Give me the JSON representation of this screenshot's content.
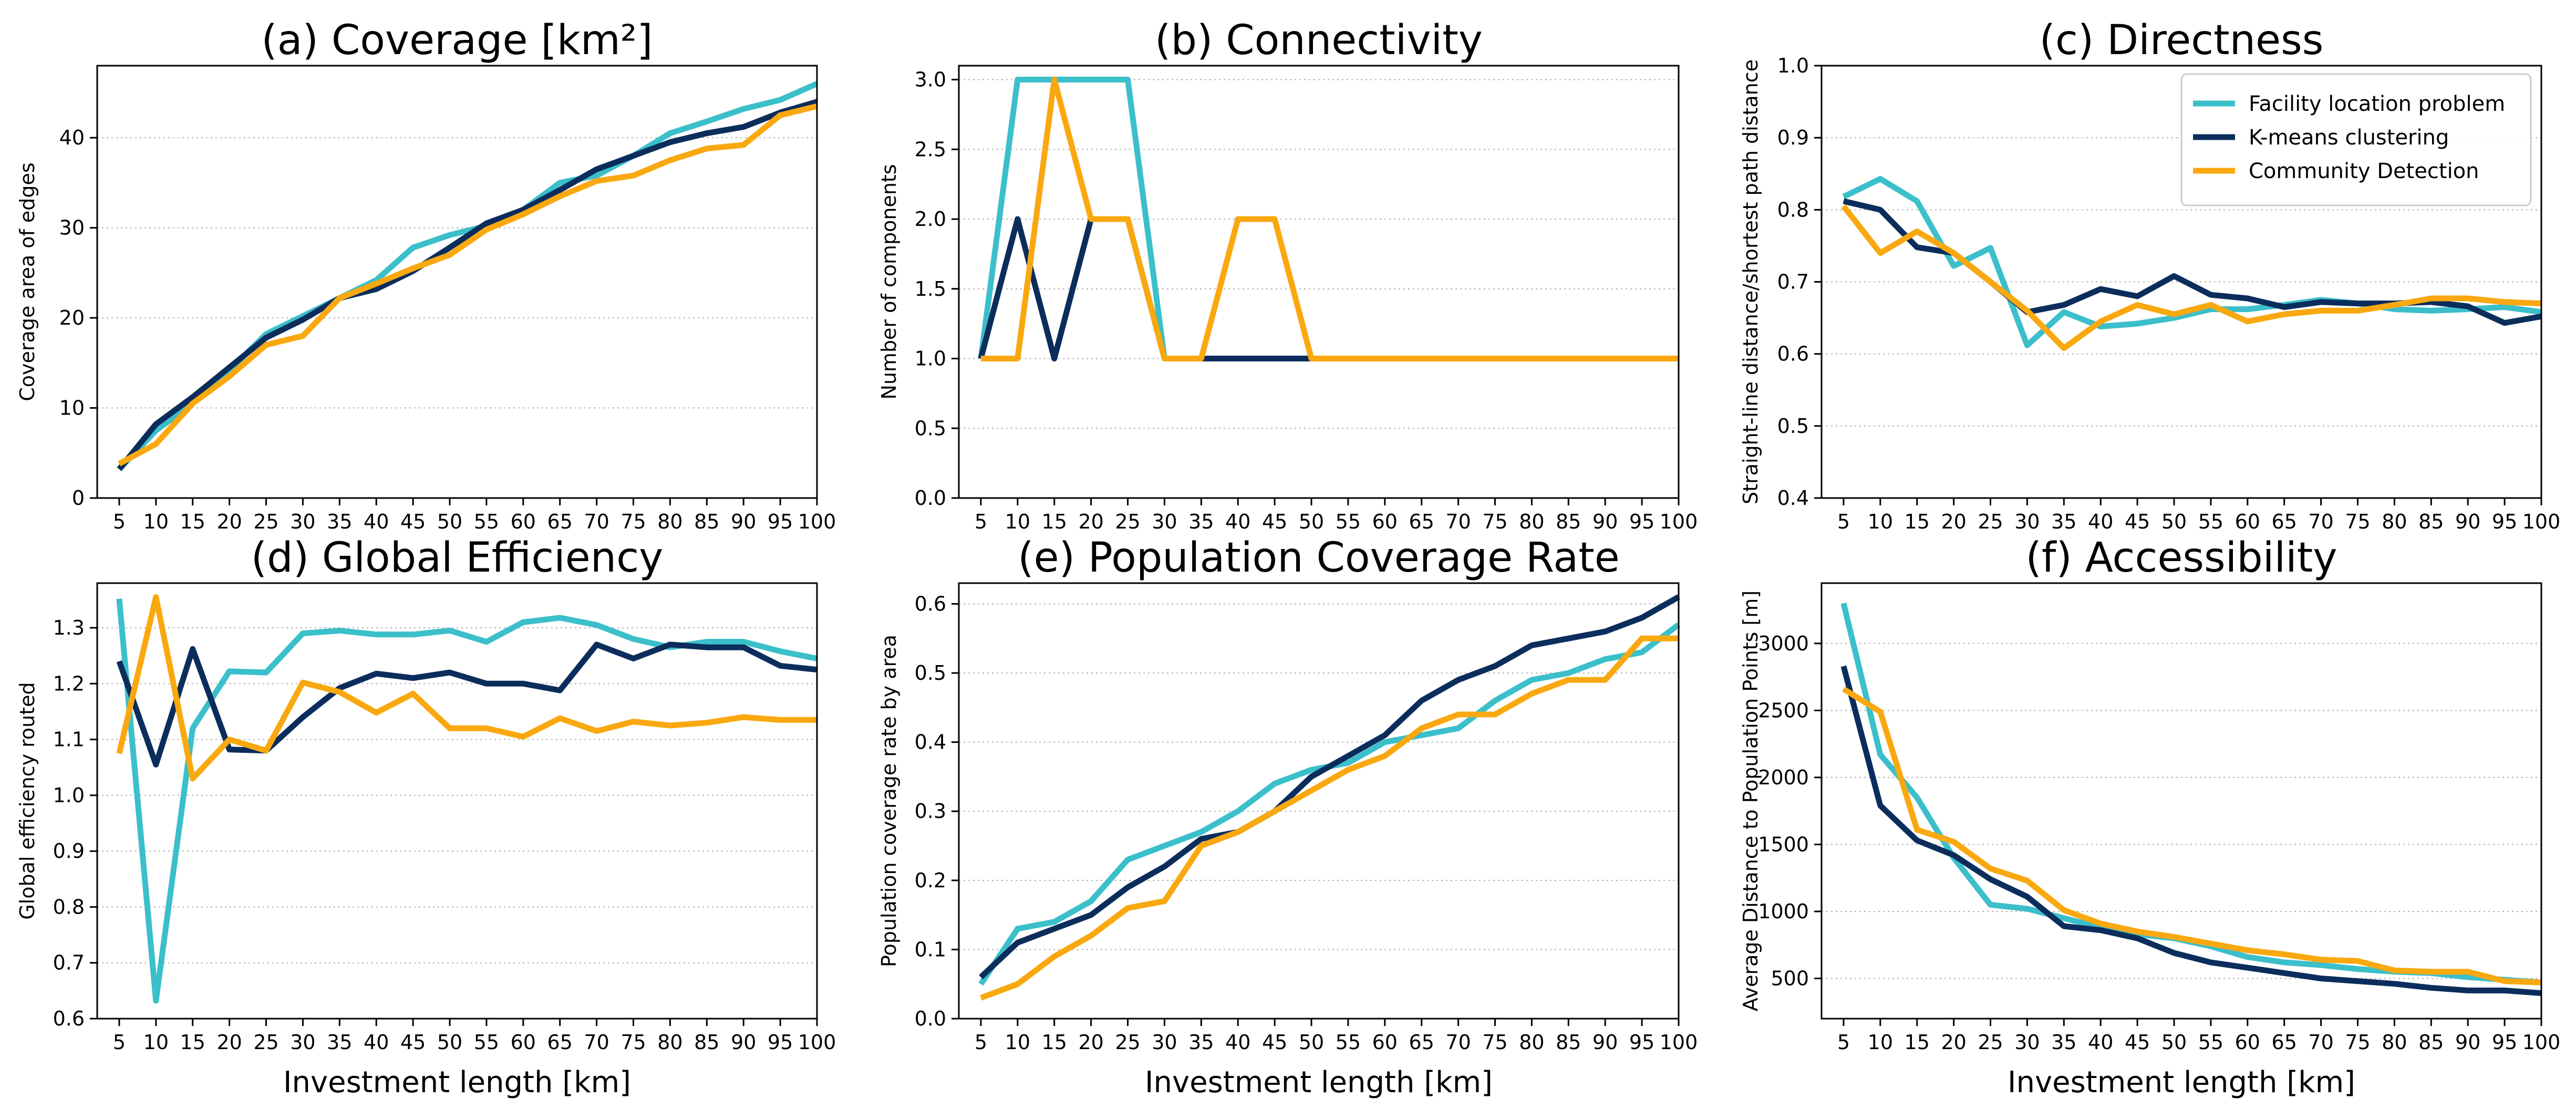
{
  "colors": {
    "facility": "#3bbfca",
    "kmeans": "#0b2d5c",
    "community": "#f9a80f",
    "grid": "#b0b0b0"
  },
  "chart_data": [
    {
      "type": "line",
      "title": "(a) Coverage [km²]",
      "ylabel": "Coverage area of edges",
      "xlabel": "",
      "x": [
        5,
        10,
        15,
        20,
        25,
        30,
        35,
        40,
        45,
        50,
        55,
        60,
        65,
        70,
        75,
        80,
        85,
        90,
        95,
        100
      ],
      "ylim": [
        0,
        48
      ],
      "yticks": [
        0,
        10,
        20,
        30,
        40
      ],
      "ytick_labels": [
        "0",
        "10",
        "20",
        "30",
        "40"
      ],
      "grid": "y",
      "series": [
        {
          "key": "facility",
          "values": [
            3.2,
            7.5,
            10.5,
            14.2,
            18.2,
            20.2,
            22.2,
            24.2,
            27.8,
            29.2,
            30.2,
            32.0,
            35.0,
            35.8,
            38.0,
            40.5,
            41.8,
            43.2,
            44.2,
            46.0
          ]
        },
        {
          "key": "kmeans",
          "values": [
            3.2,
            8.2,
            11.2,
            14.5,
            17.8,
            19.8,
            22.2,
            23.2,
            25.2,
            27.8,
            30.5,
            32.0,
            34.2,
            36.5,
            38.0,
            39.5,
            40.5,
            41.2,
            42.8,
            44.0
          ]
        },
        {
          "key": "community",
          "values": [
            3.8,
            6.0,
            10.5,
            13.5,
            17.0,
            18.0,
            22.2,
            23.8,
            25.5,
            27.0,
            29.8,
            31.5,
            33.5,
            35.2,
            35.8,
            37.5,
            38.8,
            39.2,
            42.5,
            43.5
          ]
        }
      ]
    },
    {
      "type": "line",
      "title": "(b) Connectivity",
      "ylabel": "Number of components",
      "xlabel": "",
      "x": [
        5,
        10,
        15,
        20,
        25,
        30,
        35,
        40,
        45,
        50,
        55,
        60,
        65,
        70,
        75,
        80,
        85,
        90,
        95,
        100
      ],
      "ylim": [
        0,
        3.1
      ],
      "yticks": [
        0,
        0.5,
        1.0,
        1.5,
        2.0,
        2.5,
        3.0
      ],
      "ytick_labels": [
        "0.0",
        "0.5",
        "1.0",
        "1.5",
        "2.0",
        "2.5",
        "3.0"
      ],
      "grid": "y",
      "series": [
        {
          "key": "facility",
          "values": [
            1,
            3,
            3,
            3,
            3,
            1,
            1,
            1,
            1,
            1,
            1,
            1,
            1,
            1,
            1,
            1,
            1,
            1,
            1,
            1
          ]
        },
        {
          "key": "kmeans",
          "values": [
            1,
            2,
            1,
            2,
            2,
            1,
            1,
            1,
            1,
            1,
            1,
            1,
            1,
            1,
            1,
            1,
            1,
            1,
            1,
            1
          ]
        },
        {
          "key": "community",
          "values": [
            1,
            1,
            3,
            2,
            2,
            1,
            1,
            2,
            2,
            1,
            1,
            1,
            1,
            1,
            1,
            1,
            1,
            1,
            1,
            1
          ]
        }
      ]
    },
    {
      "type": "line",
      "title": "(c) Directness",
      "ylabel": "Straight-line distance/shortest path distance",
      "xlabel": "",
      "x": [
        5,
        10,
        15,
        20,
        25,
        30,
        35,
        40,
        45,
        50,
        55,
        60,
        65,
        70,
        75,
        80,
        85,
        90,
        95,
        100
      ],
      "ylim": [
        0.4,
        1.0
      ],
      "yticks": [
        0.4,
        0.5,
        0.6,
        0.7,
        0.8,
        0.9,
        1.0
      ],
      "ytick_labels": [
        "0.4",
        "0.5",
        "0.6",
        "0.7",
        "0.8",
        "0.9",
        "1.0"
      ],
      "grid": "y",
      "legend": "top-right",
      "series": [
        {
          "key": "facility",
          "name": "Facility location problem",
          "values": [
            0.818,
            0.843,
            0.812,
            0.722,
            0.747,
            0.612,
            0.658,
            0.638,
            0.642,
            0.65,
            0.662,
            0.662,
            0.668,
            0.675,
            0.67,
            0.662,
            0.66,
            0.662,
            0.665,
            0.658
          ]
        },
        {
          "key": "kmeans",
          "name": "K-means clustering",
          "values": [
            0.812,
            0.8,
            0.748,
            0.74,
            0.7,
            0.658,
            0.668,
            0.69,
            0.68,
            0.708,
            0.682,
            0.677,
            0.665,
            0.672,
            0.67,
            0.67,
            0.672,
            0.666,
            0.643,
            0.652
          ]
        },
        {
          "key": "community",
          "name": "Community Detection",
          "values": [
            0.805,
            0.74,
            0.77,
            0.74,
            0.7,
            0.66,
            0.608,
            0.645,
            0.668,
            0.655,
            0.668,
            0.645,
            0.655,
            0.66,
            0.66,
            0.668,
            0.677,
            0.677,
            0.672,
            0.67
          ]
        }
      ]
    },
    {
      "type": "line",
      "title": "(d) Global Efficiency",
      "ylabel": "Global efficiency routed",
      "xlabel": "Investment length [km]",
      "x": [
        5,
        10,
        15,
        20,
        25,
        30,
        35,
        40,
        45,
        50,
        55,
        60,
        65,
        70,
        75,
        80,
        85,
        90,
        95,
        100
      ],
      "ylim": [
        0.6,
        1.38
      ],
      "yticks": [
        0.6,
        0.7,
        0.8,
        0.9,
        1.0,
        1.1,
        1.2,
        1.3
      ],
      "ytick_labels": [
        "0.6",
        "0.7",
        "0.8",
        "0.9",
        "1.0",
        "1.1",
        "1.2",
        "1.3"
      ],
      "grid": "y",
      "series": [
        {
          "key": "facility",
          "values": [
            1.352,
            0.632,
            1.12,
            1.222,
            1.22,
            1.29,
            1.295,
            1.288,
            1.288,
            1.295,
            1.275,
            1.31,
            1.318,
            1.305,
            1.28,
            1.265,
            1.275,
            1.275,
            1.258,
            1.245
          ]
        },
        {
          "key": "kmeans",
          "values": [
            1.24,
            1.055,
            1.262,
            1.082,
            1.08,
            1.14,
            1.192,
            1.218,
            1.21,
            1.22,
            1.2,
            1.2,
            1.188,
            1.27,
            1.245,
            1.27,
            1.265,
            1.265,
            1.232,
            1.225
          ]
        },
        {
          "key": "community",
          "values": [
            1.075,
            1.355,
            1.03,
            1.1,
            1.08,
            1.202,
            1.185,
            1.148,
            1.182,
            1.12,
            1.12,
            1.105,
            1.138,
            1.115,
            1.132,
            1.125,
            1.13,
            1.14,
            1.135,
            1.135
          ]
        }
      ]
    },
    {
      "type": "line",
      "title": "(e) Population Coverage Rate",
      "ylabel": "Population coverage rate by area",
      "xlabel": "Investment length [km]",
      "x": [
        5,
        10,
        15,
        20,
        25,
        30,
        35,
        40,
        45,
        50,
        55,
        60,
        65,
        70,
        75,
        80,
        85,
        90,
        95,
        100
      ],
      "ylim": [
        0,
        0.63
      ],
      "yticks": [
        0,
        0.1,
        0.2,
        0.3,
        0.4,
        0.5,
        0.6
      ],
      "ytick_labels": [
        "0.0",
        "0.1",
        "0.2",
        "0.3",
        "0.4",
        "0.5",
        "0.6"
      ],
      "grid": "y",
      "series": [
        {
          "key": "facility",
          "values": [
            0.05,
            0.13,
            0.14,
            0.17,
            0.23,
            0.25,
            0.27,
            0.3,
            0.34,
            0.36,
            0.37,
            0.4,
            0.41,
            0.42,
            0.46,
            0.49,
            0.5,
            0.52,
            0.53,
            0.57
          ]
        },
        {
          "key": "kmeans",
          "values": [
            0.06,
            0.11,
            0.13,
            0.15,
            0.19,
            0.22,
            0.26,
            0.27,
            0.3,
            0.35,
            0.38,
            0.41,
            0.46,
            0.49,
            0.51,
            0.54,
            0.55,
            0.56,
            0.58,
            0.61
          ]
        },
        {
          "key": "community",
          "values": [
            0.03,
            0.05,
            0.09,
            0.12,
            0.16,
            0.17,
            0.25,
            0.27,
            0.3,
            0.33,
            0.36,
            0.38,
            0.42,
            0.44,
            0.44,
            0.47,
            0.49,
            0.49,
            0.55,
            0.55
          ]
        }
      ]
    },
    {
      "type": "line",
      "title": "(f) Accessibility",
      "ylabel": "Average Distance to Population Points [m]",
      "xlabel": "Investment length [km]",
      "x": [
        5,
        10,
        15,
        20,
        25,
        30,
        35,
        40,
        45,
        50,
        55,
        60,
        65,
        70,
        75,
        80,
        85,
        90,
        95,
        100
      ],
      "ylim": [
        200,
        3450
      ],
      "yticks": [
        500,
        1000,
        1500,
        2000,
        2500,
        3000
      ],
      "ytick_labels": [
        "500",
        "1000",
        "1500",
        "2000",
        "2500",
        "3000"
      ],
      "grid": "y",
      "series": [
        {
          "key": "facility",
          "values": [
            3300,
            2170,
            1850,
            1400,
            1050,
            1020,
            950,
            880,
            830,
            800,
            740,
            660,
            620,
            600,
            570,
            550,
            540,
            510,
            490,
            470
          ]
        },
        {
          "key": "kmeans",
          "values": [
            2830,
            1790,
            1530,
            1420,
            1240,
            1110,
            890,
            860,
            800,
            690,
            620,
            580,
            540,
            500,
            480,
            460,
            430,
            410,
            410,
            390
          ]
        },
        {
          "key": "community",
          "values": [
            2660,
            2490,
            1610,
            1520,
            1320,
            1230,
            1010,
            910,
            850,
            810,
            760,
            710,
            680,
            640,
            630,
            560,
            550,
            550,
            480,
            470
          ]
        }
      ]
    }
  ]
}
